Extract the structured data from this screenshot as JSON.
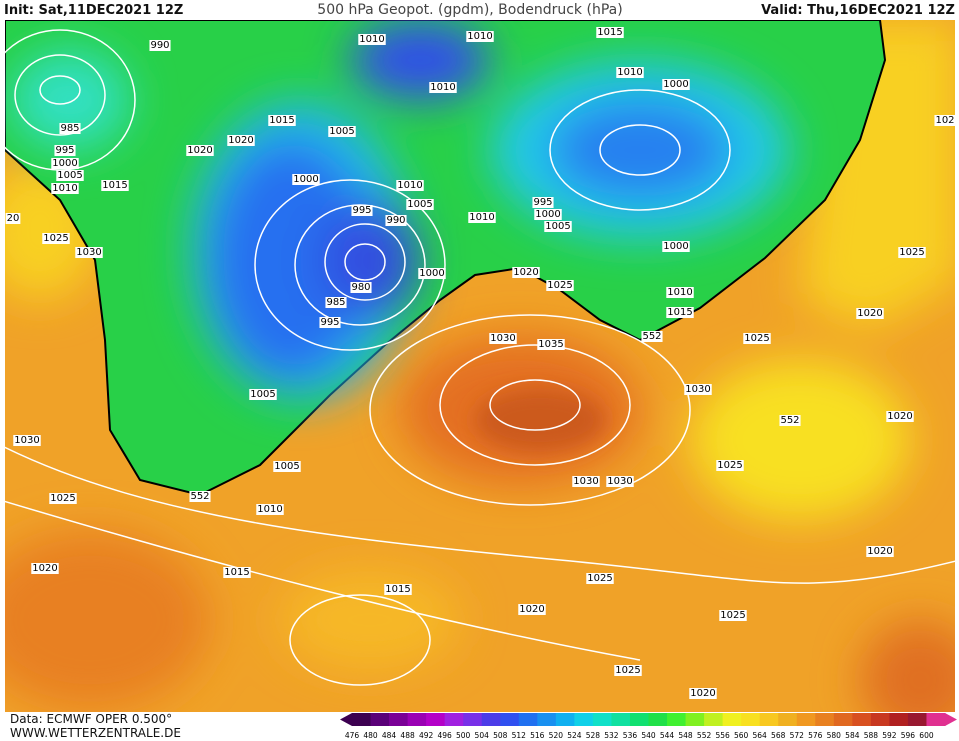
{
  "header": {
    "init": "Init: Sat,11DEC2021 12Z",
    "title": "500 hPa Geopot. (gpdm), Bodendruck (hPa)",
    "valid": "Valid: Thu,16DEC2021 12Z"
  },
  "footer": {
    "source": "Data: ECMWF OPER 0.500°",
    "website": "WWW.WETTERZENTRALE.DE"
  },
  "scale": {
    "levels": [
      476,
      480,
      484,
      488,
      492,
      496,
      500,
      504,
      508,
      512,
      516,
      520,
      524,
      528,
      532,
      536,
      540,
      544,
      548,
      552,
      556,
      560,
      564,
      568,
      572,
      576,
      580,
      584,
      588,
      592,
      596,
      600
    ],
    "colors": [
      "#3c0050",
      "#5a0078",
      "#7a0096",
      "#9a00b4",
      "#b400c8",
      "#a020e0",
      "#7830e8",
      "#4c3ce8",
      "#3050f0",
      "#2070f0",
      "#1890f0",
      "#10b0f0",
      "#10d0e8",
      "#10e0c8",
      "#10e0a0",
      "#10e070",
      "#20e048",
      "#40f030",
      "#80f020",
      "#c0f020",
      "#f0f020",
      "#f8e020",
      "#f8c820",
      "#f0b020",
      "#f09820",
      "#e88020",
      "#e06820",
      "#d85020",
      "#c83820",
      "#b02020",
      "#981830",
      "#e03090"
    ]
  },
  "isobar_labels": [
    990,
    1010,
    1010,
    1015,
    1010,
    1000,
    1010,
    985,
    1015,
    1020,
    1020,
    1005,
    995,
    1000,
    1005,
    1010,
    1015,
    1000,
    1010,
    1005,
    995,
    990,
    1010,
    995,
    1000,
    1005,
    20,
    1025,
    1030,
    980,
    1000,
    985,
    995,
    1020,
    1025,
    1000,
    1010,
    1015,
    552,
    1030,
    1035,
    1025,
    1020,
    1030,
    552,
    1020,
    1005,
    1030,
    1005,
    1025,
    1030,
    1030,
    552,
    1025,
    1010,
    1020,
    1020,
    1015,
    1025,
    1015,
    1020,
    1025,
    1025,
    1020,
    102,
    1025
  ]
}
